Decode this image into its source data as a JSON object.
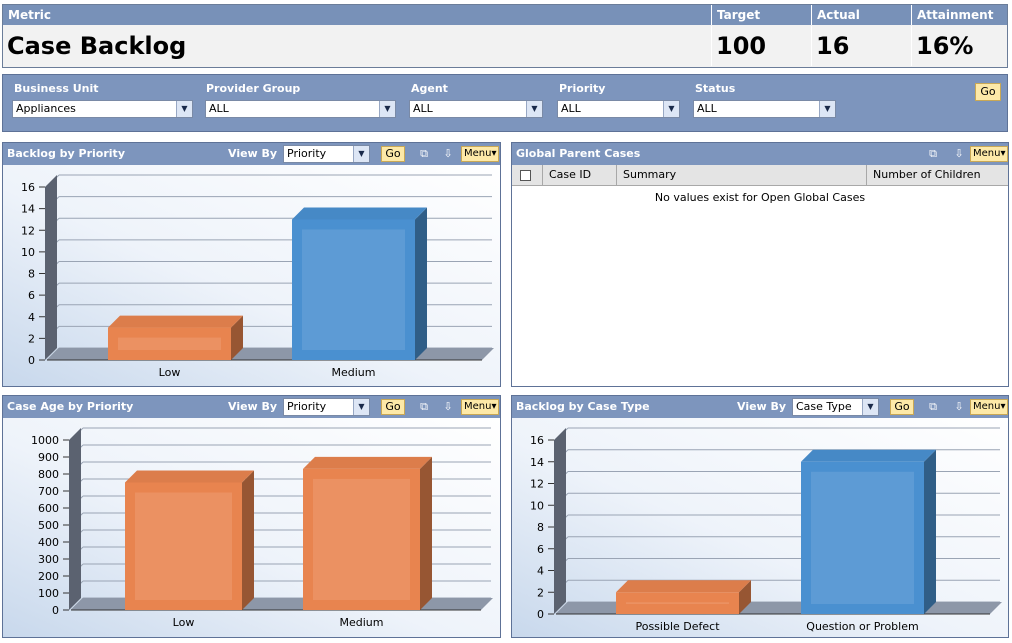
{
  "metric": {
    "headers": {
      "metric": "Metric",
      "target": "Target",
      "actual": "Actual",
      "attainment": "Attainment"
    },
    "name": "Case Backlog",
    "target": "100",
    "actual": "16",
    "attainment": "16%"
  },
  "filters": {
    "business_unit": {
      "label": "Business Unit",
      "value": "Appliances"
    },
    "provider_group": {
      "label": "Provider Group",
      "value": "ALL"
    },
    "agent": {
      "label": "Agent",
      "value": "ALL"
    },
    "priority": {
      "label": "Priority",
      "value": "ALL"
    },
    "status": {
      "label": "Status",
      "value": "ALL"
    },
    "go_label": "Go"
  },
  "common": {
    "view_by_label": "View By",
    "go_label": "Go",
    "menu_label": "Menu"
  },
  "panels": {
    "backlog_priority": {
      "title": "Backlog by Priority",
      "view_by": "Priority"
    },
    "global_parent": {
      "title": "Global Parent Cases",
      "columns": [
        "Case ID",
        "Summary",
        "Number of Children"
      ],
      "empty_message": "No values exist for Open Global Cases"
    },
    "age_priority": {
      "title": "Case Age by Priority",
      "view_by": "Priority"
    },
    "backlog_type": {
      "title": "Backlog by Case Type",
      "view_by": "Case Type"
    }
  },
  "icons": {
    "popout": "popout-icon",
    "export": "export-icon",
    "dropdown": "chevron-down-icon"
  },
  "colors": {
    "header_blue": "#7d95bd",
    "bar_orange": "#e8844f",
    "bar_blue": "#4a90d0",
    "go_yellow": "#fde9a8"
  },
  "chart_data": [
    {
      "id": "chart-backlog-priority",
      "type": "bar",
      "title": "Backlog by Priority",
      "categories": [
        "Low",
        "Medium"
      ],
      "values": [
        3,
        13
      ],
      "ylim": [
        0,
        16
      ],
      "yticks": [
        0,
        2,
        4,
        6,
        8,
        10,
        12,
        14,
        16
      ],
      "colors": [
        "#e8844f",
        "#4a90d0"
      ],
      "grid": true
    },
    {
      "id": "chart-age-priority",
      "type": "bar",
      "title": "Case Age by Priority",
      "categories": [
        "Low",
        "Medium"
      ],
      "values": [
        750,
        830
      ],
      "ylim": [
        0,
        1000
      ],
      "yticks": [
        0,
        100,
        200,
        300,
        400,
        500,
        600,
        700,
        800,
        900,
        1000
      ],
      "colors": [
        "#e8844f",
        "#e8844f"
      ],
      "grid": true
    },
    {
      "id": "chart-backlog-type",
      "type": "bar",
      "title": "Backlog by Case Type",
      "categories": [
        "Possible Defect",
        "Question or Problem"
      ],
      "values": [
        2,
        14
      ],
      "ylim": [
        0,
        16
      ],
      "yticks": [
        0,
        2,
        4,
        6,
        8,
        10,
        12,
        14,
        16
      ],
      "colors": [
        "#e8844f",
        "#4a90d0"
      ],
      "grid": true
    }
  ]
}
